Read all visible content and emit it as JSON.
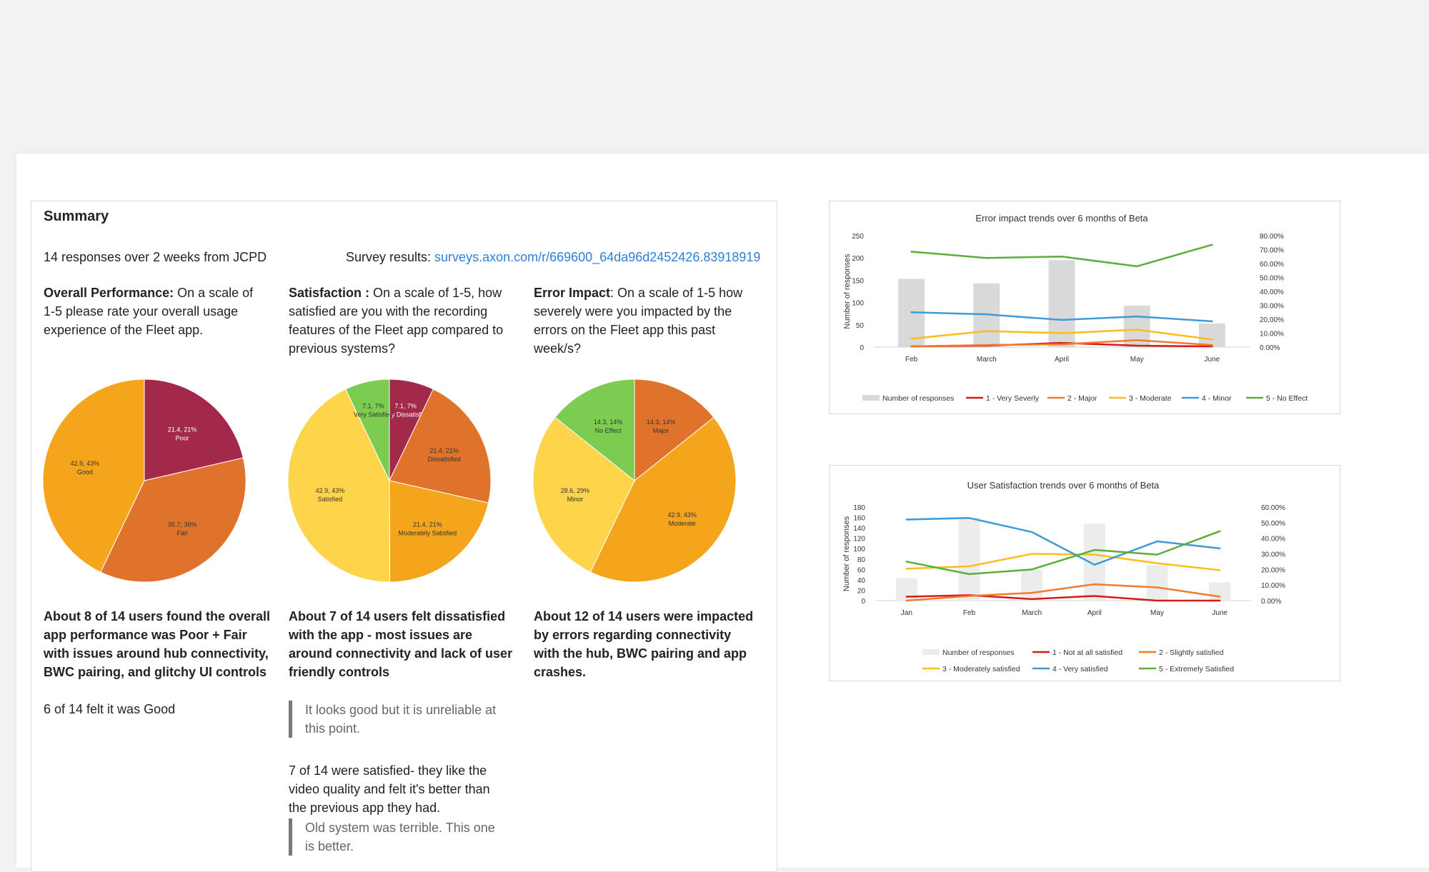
{
  "summary": {
    "title": "Summary",
    "responses": "14 responses over 2 weeks from JCPD",
    "survey_label": "Survey results: ",
    "survey_link": "surveys.axon.com/r/669600_64da96d2452426.83918919",
    "q1": {
      "label": "Overall Performance:",
      "text": " On a scale of 1-5 please rate your overall usage experience of the Fleet app.",
      "finding": "About 8 of 14 users found the overall app performance was Poor + Fair with issues around hub connectivity, BWC pairing, and glitchy UI controls",
      "note": "6 of 14 felt it was Good"
    },
    "q2": {
      "label": "Satisfaction :",
      "text": " On a scale of 1-5, how satisfied are you with the recording features of the Fleet app compared to previous systems?",
      "finding": "About 7 of 14 users felt dissatisfied with the app - most issues are around connectivity and lack of user friendly controls",
      "quote1": "It looks good but it is unreliable at this point.",
      "note": "7 of 14 were satisfied- they like the video quality and felt it's better than the previous app they had.",
      "quote2": "Old system was terrible. This one is better."
    },
    "q3": {
      "label": "Error Impact",
      "text": ": On a scale of 1-5 how severely were you impacted by the errors on the Fleet app this past week/s?",
      "finding": "About 12 of 14 users were impacted by errors regarding connectivity with the hub, BWC pairing and app crashes."
    }
  },
  "chart_data": [
    {
      "type": "pie",
      "slices": [
        {
          "label": "Poor",
          "value": 21.4,
          "pct": "21%",
          "text": "21.4, 21%",
          "color": "#a3294a"
        },
        {
          "label": "Fair",
          "value": 35.7,
          "pct": "36%",
          "text": "35.7, 36%",
          "color": "#e0732b"
        },
        {
          "label": "Good",
          "value": 42.9,
          "pct": "43%",
          "text": "42.9, 43%",
          "color": "#f4a51c"
        }
      ]
    },
    {
      "type": "pie",
      "slices": [
        {
          "label": "Very Dissatisfied",
          "value": 7.1,
          "pct": "7%",
          "text": "7.1, 7%",
          "color": "#a3294a"
        },
        {
          "label": "Dissatisfied",
          "value": 21.4,
          "pct": "21%",
          "text": "21.4, 21%",
          "color": "#e0732b"
        },
        {
          "label": "Moderately Satisfied",
          "value": 21.4,
          "pct": "21%",
          "text": "21.4, 21%",
          "color": "#f4a51c"
        },
        {
          "label": "Satisfied",
          "value": 42.9,
          "pct": "43%",
          "text": "42.9, 43%",
          "color": "#fdd44a"
        },
        {
          "label": "Very Satisfied",
          "value": 7.1,
          "pct": "7%",
          "text": "7.1, 7%",
          "color": "#7ccc52"
        }
      ]
    },
    {
      "type": "pie",
      "slices": [
        {
          "label": "Major",
          "value": 14.3,
          "pct": "14%",
          "text": "14.3, 14%",
          "color": "#e0732b"
        },
        {
          "label": "Moderate",
          "value": 42.9,
          "pct": "43%",
          "text": "42.9, 43%",
          "color": "#f4a51c"
        },
        {
          "label": "Minor",
          "value": 28.6,
          "pct": "29%",
          "text": "28.6, 29%",
          "color": "#fdd44a"
        },
        {
          "label": "No Effect",
          "value": 14.3,
          "pct": "14%",
          "text": "14.3, 14%",
          "color": "#7ccc52"
        }
      ]
    },
    {
      "type": "bar+line",
      "title": "Error impact trends over 6 months of Beta",
      "ylabel": "Number of responses",
      "categories": [
        "Feb",
        "March",
        "April",
        "May",
        "June"
      ],
      "ylim": [
        0,
        250
      ],
      "yticks": [
        "0",
        "50",
        "100",
        "150",
        "200",
        "250"
      ],
      "y2lim": [
        0,
        80
      ],
      "y2ticks": [
        "0.00%",
        "10.00%",
        "20.00%",
        "30.00%",
        "40.00%",
        "50.00%",
        "60.00%",
        "70.00%",
        "80.00%"
      ],
      "bars": {
        "name": "Number of responses",
        "values": [
          153,
          143,
          195,
          93,
          53
        ],
        "color": "#d9d9d9"
      },
      "series": [
        {
          "name": "1 - Very Severly",
          "values": [
            0.5,
            1,
            3,
            1,
            0.5
          ],
          "color": "#d7191c"
        },
        {
          "name": "2 - Major",
          "values": [
            0.5,
            1.5,
            2,
            5,
            1.5
          ],
          "color": "#f07b2a"
        },
        {
          "name": "3 - Moderate",
          "values": [
            6,
            11.5,
            10,
            12.5,
            5.5
          ],
          "color": "#fbbd1c"
        },
        {
          "name": "4 - Minor",
          "values": [
            25,
            23.5,
            19.5,
            22,
            18.5
          ],
          "color": "#3f9ad6"
        },
        {
          "name": "5 - No Effect",
          "values": [
            68.5,
            64,
            65,
            58,
            73.5
          ],
          "color": "#5cad3a"
        }
      ]
    },
    {
      "type": "bar+line",
      "title": "User Satisfaction trends over 6 months of Beta",
      "ylabel": "Number of responses",
      "categories": [
        "Jan",
        "Feb",
        "March",
        "April",
        "May",
        "June"
      ],
      "ylim": [
        0,
        180
      ],
      "yticks": [
        "0",
        "20",
        "40",
        "60",
        "80",
        "100",
        "120",
        "140",
        "160",
        "180"
      ],
      "y2lim": [
        0,
        60
      ],
      "y2ticks": [
        "0.00%",
        "10.00%",
        "20.00%",
        "30.00%",
        "40.00%",
        "50.00%",
        "60.00%"
      ],
      "bars": {
        "name": "Number of responses",
        "values": [
          43,
          160,
          60,
          148,
          68,
          35
        ],
        "color": "#ececec"
      },
      "series": [
        {
          "name": "1 - Not at all satisfied",
          "values": [
            2.5,
            3.5,
            1,
            3,
            0,
            0
          ],
          "color": "#d7191c"
        },
        {
          "name": "2 - Slightly satisfied",
          "values": [
            0,
            3,
            5,
            10.5,
            8.5,
            2.5
          ],
          "color": "#f07b2a"
        },
        {
          "name": "3 - Moderately satisfied",
          "values": [
            20.5,
            22,
            30,
            29.5,
            24,
            19.5
          ],
          "color": "#fbbd1c"
        },
        {
          "name": "4 - Very satisfied",
          "values": [
            52,
            53,
            44,
            23,
            38,
            33.5
          ],
          "color": "#3f9ad6"
        },
        {
          "name": "5 - Extremely Satisfied",
          "values": [
            25,
            17,
            20,
            32.5,
            29.5,
            44.5
          ],
          "color": "#5cad3a"
        }
      ]
    }
  ]
}
